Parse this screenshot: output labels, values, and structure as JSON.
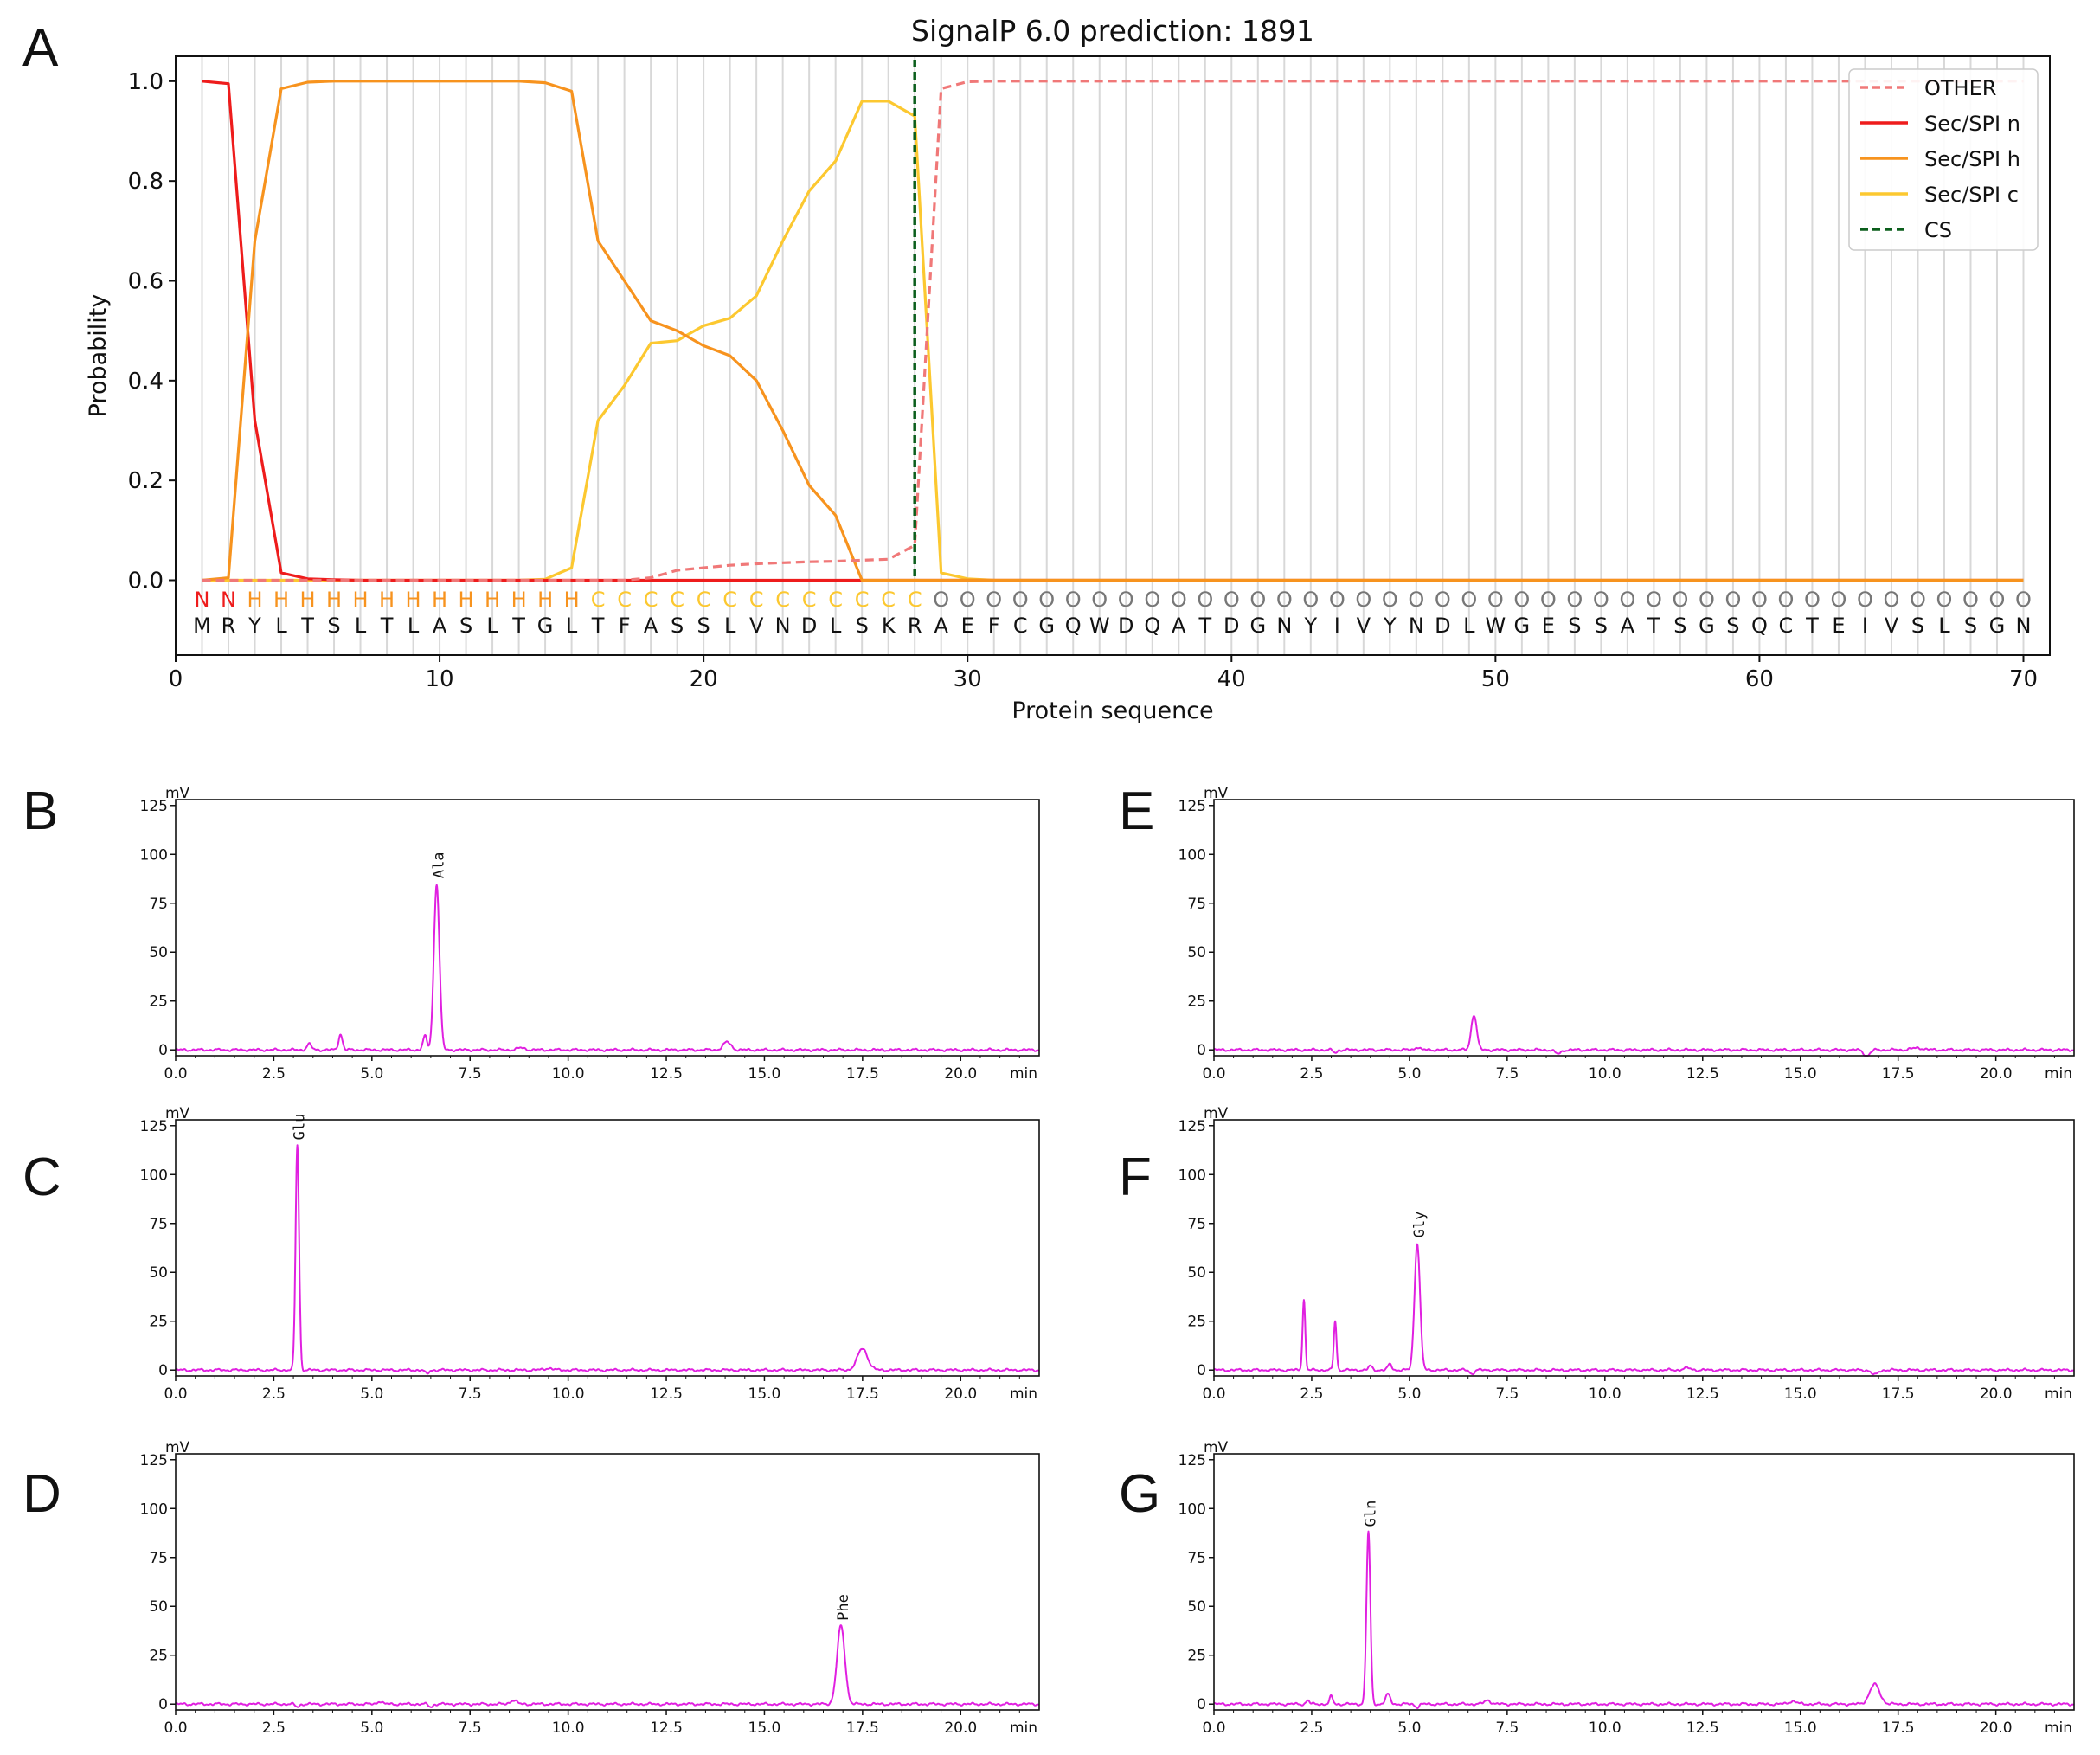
{
  "panel_labels": [
    "A",
    "B",
    "C",
    "D",
    "E",
    "F",
    "G"
  ],
  "colors": {
    "other": "#f07878",
    "sec_n": "#ee1c1c",
    "sec_h": "#f7931e",
    "sec_c": "#fcc830",
    "cs": "#0b5e1c",
    "chromatogram": "#e020e0",
    "grid": "#d8d8d8",
    "other_label": "#777777",
    "residue": "#111111"
  },
  "chart_data": [
    {
      "type": "line",
      "panel": "A",
      "title": "SignalP 6.0 prediction: 1891",
      "xlabel": "Protein sequence",
      "ylabel": "Probability",
      "xlim": [
        0,
        71
      ],
      "ylim": [
        -0.15,
        1.05
      ],
      "xticks": [
        0,
        10,
        20,
        30,
        40,
        50,
        60,
        70
      ],
      "yticks": [
        0.0,
        0.2,
        0.4,
        0.6,
        0.8,
        1.0
      ],
      "ytick_labels": [
        "0.0",
        "0.2",
        "0.4",
        "0.6",
        "0.8",
        "1.0"
      ],
      "grid": "vertical lines at every residue",
      "legend_position": "top-right",
      "x": [
        1,
        2,
        3,
        4,
        5,
        6,
        7,
        8,
        9,
        10,
        11,
        12,
        13,
        14,
        15,
        16,
        17,
        18,
        19,
        20,
        21,
        22,
        23,
        24,
        25,
        26,
        27,
        28,
        29,
        30,
        31,
        32,
        33,
        34,
        35,
        36,
        37,
        38,
        39,
        40,
        41,
        42,
        43,
        44,
        45,
        46,
        47,
        48,
        49,
        50,
        51,
        52,
        53,
        54,
        55,
        56,
        57,
        58,
        59,
        60,
        61,
        62,
        63,
        64,
        65,
        66,
        67,
        68,
        69,
        70
      ],
      "sequence": [
        "M",
        "R",
        "Y",
        "L",
        "T",
        "S",
        "L",
        "T",
        "L",
        "A",
        "S",
        "L",
        "T",
        "G",
        "L",
        "T",
        "F",
        "A",
        "S",
        "S",
        "L",
        "V",
        "N",
        "D",
        "L",
        "S",
        "K",
        "R",
        "A",
        "E",
        "F",
        "C",
        "G",
        "Q",
        "W",
        "D",
        "Q",
        "A",
        "T",
        "D",
        "G",
        "N",
        "Y",
        "I",
        "V",
        "Y",
        "N",
        "D",
        "L",
        "W",
        "G",
        "E",
        "S",
        "S",
        "A",
        "T",
        "S",
        "G",
        "S",
        "Q",
        "C",
        "T",
        "E",
        "I",
        "V",
        "S",
        "L",
        "S",
        "G",
        "N"
      ],
      "region_labels": [
        "N",
        "N",
        "H",
        "H",
        "H",
        "H",
        "H",
        "H",
        "H",
        "H",
        "H",
        "H",
        "H",
        "H",
        "H",
        "C",
        "C",
        "C",
        "C",
        "C",
        "C",
        "C",
        "C",
        "C",
        "C",
        "C",
        "C",
        "C",
        "O",
        "O",
        "O",
        "O",
        "O",
        "O",
        "O",
        "O",
        "O",
        "O",
        "O",
        "O",
        "O",
        "O",
        "O",
        "O",
        "O",
        "O",
        "O",
        "O",
        "O",
        "O",
        "O",
        "O",
        "O",
        "O",
        "O",
        "O",
        "O",
        "O",
        "O",
        "O",
        "O",
        "O",
        "O",
        "O",
        "O",
        "O",
        "O",
        "O",
        "O",
        "O"
      ],
      "cleavage_site": 28,
      "series": [
        {
          "name": "OTHER",
          "style": "dashed",
          "values": [
            0,
            0,
            0,
            0,
            0,
            0,
            0,
            0,
            0,
            0,
            0,
            0,
            0,
            0,
            0,
            0,
            0,
            0.005,
            0.02,
            0.025,
            0.03,
            0.033,
            0.035,
            0.037,
            0.038,
            0.04,
            0.042,
            0.07,
            0.985,
            0.999,
            1,
            1,
            1,
            1,
            1,
            1,
            1,
            1,
            1,
            1,
            1,
            1,
            1,
            1,
            1,
            1,
            1,
            1,
            1,
            1,
            1,
            1,
            1,
            1,
            1,
            1,
            1,
            1,
            1,
            1,
            1,
            1,
            1,
            1,
            1,
            1,
            1,
            1,
            1,
            1
          ]
        },
        {
          "name": "Sec/SPI n",
          "style": "solid",
          "values": [
            1.0,
            0.995,
            0.32,
            0.015,
            0.003,
            0.001,
            0,
            0,
            0,
            0,
            0,
            0,
            0,
            0,
            0,
            0,
            0,
            0,
            0,
            0,
            0,
            0,
            0,
            0,
            0,
            0,
            0,
            0,
            0,
            0,
            0,
            0,
            0,
            0,
            0,
            0,
            0,
            0,
            0,
            0,
            0,
            0,
            0,
            0,
            0,
            0,
            0,
            0,
            0,
            0,
            0,
            0,
            0,
            0,
            0,
            0,
            0,
            0,
            0,
            0,
            0,
            0,
            0,
            0,
            0,
            0,
            0,
            0,
            0,
            0
          ]
        },
        {
          "name": "Sec/SPI h",
          "style": "solid",
          "values": [
            0,
            0.005,
            0.68,
            0.985,
            0.998,
            1,
            1,
            1,
            1,
            1,
            1,
            1,
            1,
            0.997,
            0.98,
            0.68,
            0.6,
            0.52,
            0.5,
            0.47,
            0.45,
            0.4,
            0.3,
            0.19,
            0.13,
            0,
            0,
            0,
            0,
            0,
            0,
            0,
            0,
            0,
            0,
            0,
            0,
            0,
            0,
            0,
            0,
            0,
            0,
            0,
            0,
            0,
            0,
            0,
            0,
            0,
            0,
            0,
            0,
            0,
            0,
            0,
            0,
            0,
            0,
            0,
            0,
            0,
            0,
            0,
            0,
            0,
            0,
            0,
            0,
            0
          ]
        },
        {
          "name": "Sec/SPI c",
          "style": "solid",
          "values": [
            0,
            0,
            0,
            0,
            0,
            0,
            0,
            0,
            0,
            0,
            0,
            0,
            0,
            0.002,
            0.025,
            0.32,
            0.39,
            0.475,
            0.48,
            0.51,
            0.525,
            0.57,
            0.68,
            0.78,
            0.84,
            0.96,
            0.96,
            0.93,
            0.015,
            0.003,
            0,
            0,
            0,
            0,
            0,
            0,
            0,
            0,
            0,
            0,
            0,
            0,
            0,
            0,
            0,
            0,
            0,
            0,
            0,
            0,
            0,
            0,
            0,
            0,
            0,
            0,
            0,
            0,
            0,
            0,
            0,
            0,
            0,
            0,
            0,
            0,
            0,
            0,
            0,
            0
          ]
        },
        {
          "name": "CS",
          "style": "dashed-vertical",
          "x": 28
        }
      ]
    },
    {
      "type": "line",
      "panel": "B",
      "ylabel": "mV",
      "xlabel": "min",
      "xlim": [
        0,
        22
      ],
      "ylim": [
        -3,
        128
      ],
      "xticks": [
        "0.0",
        "2.5",
        "5.0",
        "7.5",
        "10.0",
        "12.5",
        "15.0",
        "17.5",
        "20.0"
      ],
      "yticks": [
        "0",
        "25",
        "50",
        "75",
        "100",
        "125"
      ],
      "peaks": [
        {
          "label": "Ala",
          "time": 6.65,
          "height": 85,
          "width": 0.07
        },
        {
          "label": "",
          "time": 4.2,
          "height": 8,
          "width": 0.05
        },
        {
          "label": "",
          "time": 3.4,
          "height": 3,
          "width": 0.06
        },
        {
          "label": "",
          "time": 6.35,
          "height": 7,
          "width": 0.05
        },
        {
          "label": "",
          "time": 14.05,
          "height": 4,
          "width": 0.1
        },
        {
          "label": "",
          "time": 8.8,
          "height": 1,
          "width": 0.1
        }
      ]
    },
    {
      "type": "line",
      "panel": "C",
      "ylabel": "mV",
      "xlabel": "min",
      "xlim": [
        0,
        22
      ],
      "ylim": [
        -3,
        128
      ],
      "xticks": [
        "0.0",
        "2.5",
        "5.0",
        "7.5",
        "10.0",
        "12.5",
        "15.0",
        "17.5",
        "20.0"
      ],
      "yticks": [
        "0",
        "25",
        "50",
        "75",
        "100",
        "125"
      ],
      "peaks": [
        {
          "label": "Glu",
          "time": 3.1,
          "height": 115,
          "width": 0.045
        },
        {
          "label": "",
          "time": 17.5,
          "height": 11,
          "width": 0.13
        },
        {
          "label": "",
          "time": 6.4,
          "height": -2,
          "width": 0.05
        },
        {
          "label": "",
          "time": 9.5,
          "height": 1,
          "width": 0.1
        }
      ]
    },
    {
      "type": "line",
      "panel": "D",
      "ylabel": "mV",
      "xlabel": "min",
      "xlim": [
        0,
        22
      ],
      "ylim": [
        -3,
        128
      ],
      "xticks": [
        "0.0",
        "2.5",
        "5.0",
        "7.5",
        "10.0",
        "12.5",
        "15.0",
        "17.5",
        "20.0"
      ],
      "yticks": [
        "0",
        "25",
        "50",
        "75",
        "100",
        "125"
      ],
      "peaks": [
        {
          "label": "Phe",
          "time": 16.95,
          "height": 40,
          "width": 0.1
        },
        {
          "label": "",
          "time": 8.6,
          "height": 2,
          "width": 0.08
        },
        {
          "label": "",
          "time": 5.2,
          "height": 1.5,
          "width": 0.06
        },
        {
          "label": "",
          "time": 3.1,
          "height": -1.5,
          "width": 0.05
        },
        {
          "label": "",
          "time": 6.5,
          "height": -1.5,
          "width": 0.05
        }
      ]
    },
    {
      "type": "line",
      "panel": "E",
      "ylabel": "mV",
      "xlabel": "min",
      "xlim": [
        0,
        22
      ],
      "ylim": [
        -3,
        128
      ],
      "xticks": [
        "0.0",
        "2.5",
        "5.0",
        "7.5",
        "10.0",
        "12.5",
        "15.0",
        "17.5",
        "20.0"
      ],
      "yticks": [
        "0",
        "25",
        "50",
        "75",
        "100",
        "125"
      ],
      "peaks": [
        {
          "label": "",
          "time": 6.65,
          "height": 18,
          "width": 0.07
        },
        {
          "label": "",
          "time": 5.2,
          "height": 1.5,
          "width": 0.06
        },
        {
          "label": "",
          "time": 3.1,
          "height": -1.5,
          "width": 0.05
        },
        {
          "label": "",
          "time": 8.8,
          "height": -2,
          "width": 0.08
        },
        {
          "label": "",
          "time": 16.7,
          "height": -3,
          "width": 0.08
        },
        {
          "label": "",
          "time": 18.0,
          "height": 1,
          "width": 0.15
        }
      ]
    },
    {
      "type": "line",
      "panel": "F",
      "ylabel": "mV",
      "xlabel": "min",
      "xlim": [
        0,
        22
      ],
      "ylim": [
        -3,
        128
      ],
      "xticks": [
        "0.0",
        "2.5",
        "5.0",
        "7.5",
        "10.0",
        "12.5",
        "15.0",
        "17.5",
        "20.0"
      ],
      "yticks": [
        "0",
        "25",
        "50",
        "75",
        "100",
        "125"
      ],
      "peaks": [
        {
          "label": "Gly",
          "time": 5.2,
          "height": 65,
          "width": 0.07
        },
        {
          "label": "",
          "time": 2.3,
          "height": 36,
          "width": 0.035
        },
        {
          "label": "",
          "time": 3.1,
          "height": 25,
          "width": 0.035
        },
        {
          "label": "",
          "time": 4.0,
          "height": 2,
          "width": 0.05
        },
        {
          "label": "",
          "time": 4.5,
          "height": 3,
          "width": 0.05
        },
        {
          "label": "",
          "time": 6.6,
          "height": -2,
          "width": 0.05
        },
        {
          "label": "",
          "time": 12.1,
          "height": 1,
          "width": 0.1
        },
        {
          "label": "",
          "time": 16.9,
          "height": -2.5,
          "width": 0.08
        }
      ]
    },
    {
      "type": "line",
      "panel": "G",
      "ylabel": "mV",
      "xlabel": "min",
      "xlim": [
        0,
        22
      ],
      "ylim": [
        -3,
        128
      ],
      "xticks": [
        "0.0",
        "2.5",
        "5.0",
        "7.5",
        "10.0",
        "12.5",
        "15.0",
        "17.5",
        "20.0"
      ],
      "yticks": [
        "0",
        "25",
        "50",
        "75",
        "100",
        "125"
      ],
      "peaks": [
        {
          "label": "Gln",
          "time": 3.95,
          "height": 88,
          "width": 0.05
        },
        {
          "label": "",
          "time": 4.45,
          "height": 5,
          "width": 0.06
        },
        {
          "label": "",
          "time": 3.0,
          "height": 4,
          "width": 0.04
        },
        {
          "label": "",
          "time": 2.4,
          "height": 2,
          "width": 0.04
        },
        {
          "label": "",
          "time": 7.0,
          "height": 2,
          "width": 0.08
        },
        {
          "label": "",
          "time": 16.9,
          "height": 10,
          "width": 0.13
        },
        {
          "label": "",
          "time": 14.8,
          "height": 1.5,
          "width": 0.1
        },
        {
          "label": "",
          "time": 5.2,
          "height": -1.5,
          "width": 0.05
        }
      ]
    }
  ]
}
